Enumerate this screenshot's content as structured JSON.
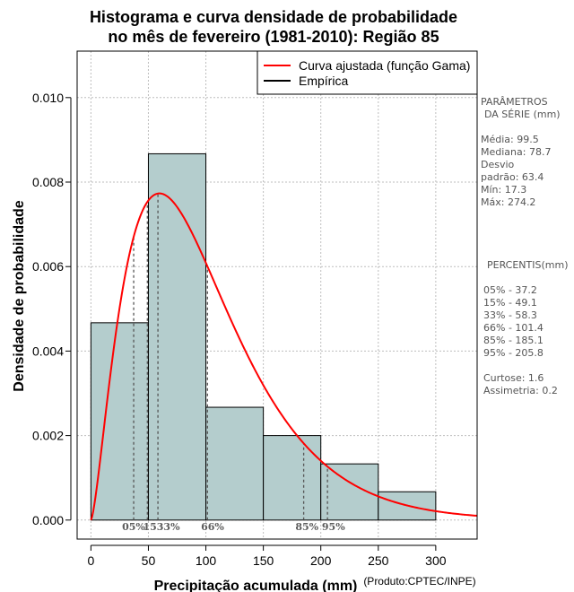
{
  "chart_data": {
    "type": "bar",
    "title_lines": [
      "Histograma e curva densidade de probabilidade",
      "no mês de fevereiro (1981-2010): Região 85"
    ],
    "xlabel": "Precipitação acumulada (mm)",
    "ylabel": "Densidade de probabilidade",
    "credit": "(Produto:CPTEC/INPE)",
    "xlim": [
      -12,
      336
    ],
    "ylim": [
      -0.00045,
      0.0111
    ],
    "x_ticks": [
      {
        "v": 0,
        "label": "0"
      },
      {
        "v": 50,
        "label": "50"
      },
      {
        "v": 100,
        "label": "100"
      },
      {
        "v": 150,
        "label": "150"
      },
      {
        "v": 200,
        "label": "200"
      },
      {
        "v": 250,
        "label": "250"
      },
      {
        "v": 300,
        "label": "300"
      }
    ],
    "y_ticks": [
      {
        "v": 0,
        "label": "0.000"
      },
      {
        "v": 0.002,
        "label": "0.002"
      },
      {
        "v": 0.004,
        "label": "0.004"
      },
      {
        "v": 0.006,
        "label": "0.006"
      },
      {
        "v": 0.008,
        "label": "0.008"
      },
      {
        "v": 0.01,
        "label": "0.010"
      }
    ],
    "grid": true,
    "bins": [
      {
        "x0": 0,
        "x1": 50,
        "density": 0.00467
      },
      {
        "x0": 50,
        "x1": 100,
        "density": 0.00867
      },
      {
        "x0": 100,
        "x1": 150,
        "density": 0.00267
      },
      {
        "x0": 150,
        "x1": 200,
        "density": 0.002
      },
      {
        "x0": 200,
        "x1": 250,
        "density": 0.00133
      },
      {
        "x0": 250,
        "x1": 300,
        "density": 0.00067
      }
    ],
    "gamma_fit": {
      "shape": 2.49,
      "scale": 40
    },
    "percentile_markers": [
      {
        "x": 37.2,
        "label": "05%"
      },
      {
        "x": 49.1,
        "label": "15%"
      },
      {
        "x": 58.3,
        "label": "33%"
      },
      {
        "x": 101.4,
        "label": "66%"
      },
      {
        "x": 185.1,
        "label": "85%"
      },
      {
        "x": 205.8,
        "label": "95%"
      }
    ],
    "percentile_label_text": {
      "low": "05%",
      "mid": "1533%",
      "p66": "66%",
      "high": "85% 95%"
    },
    "legend": {
      "position": "top-right",
      "entries": [
        {
          "label": "Curva ajustada (função Gama)",
          "color": "#ff0000"
        },
        {
          "label": "Empírica",
          "color": "#000000"
        }
      ]
    },
    "colors": {
      "bar_fill": "#b4cdcd",
      "bar_stroke": "#000000",
      "curve": "#ff0000",
      "grid": "#bebebe",
      "percentile": "#555555"
    }
  },
  "side_panel": {
    "params_heading_1": "PARÂMETROS",
    "params_heading_2": "DA SÉRIE (mm)",
    "stats": [
      "Média:  99.5",
      "Mediana:  78.7",
      "Desvio",
      "padrão:  63.4",
      "Mín:  17.3",
      "Máx:  274.2"
    ],
    "percentis_heading": "PERCENTIS(mm)",
    "percentis": [
      "05% -  37.2",
      "15% -  49.1",
      "33% -  58.3",
      "66% -  101.4",
      "85% -  185.1",
      "95% -  205.8"
    ],
    "curtose": "Curtose:  1.6",
    "assimetria": "Assimetria:  0.2"
  }
}
